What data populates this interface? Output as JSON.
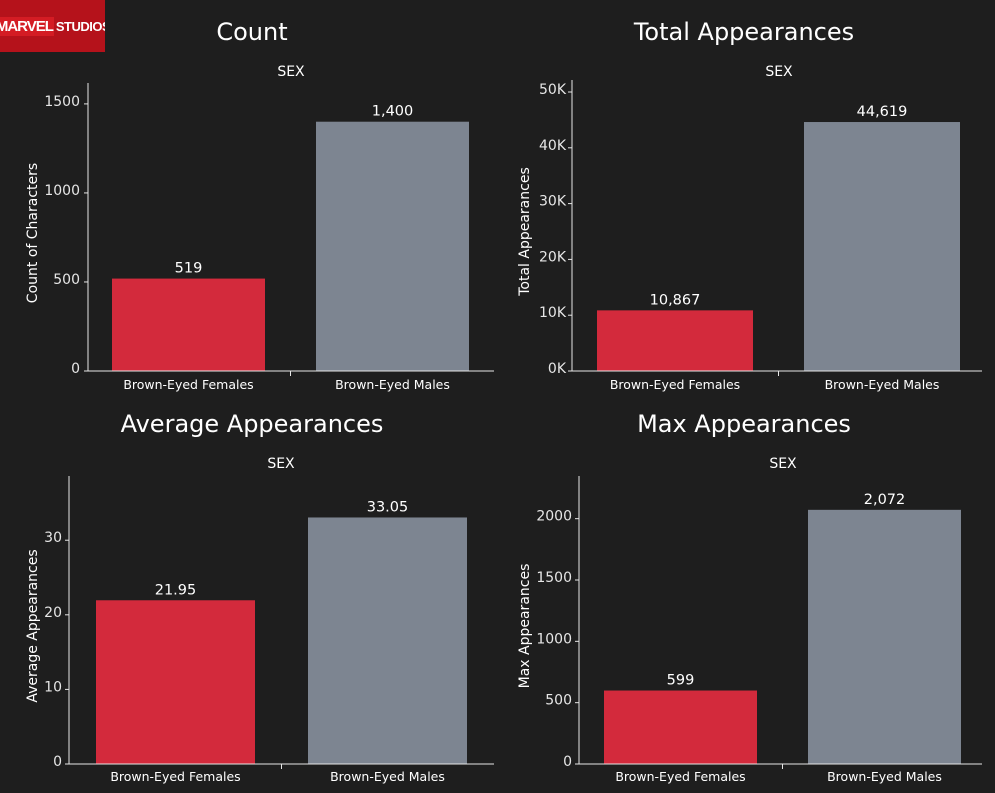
{
  "logo": {
    "text_a": "MARVEL",
    "text_b": "STUDIOS"
  },
  "colors": {
    "female": "#d32a3c",
    "male": "#7d8591",
    "background": "#1e1e1e"
  },
  "chart_data": [
    {
      "type": "bar",
      "title": "Count",
      "header": "SEX",
      "ylabel": "Count of Characters",
      "categories": [
        "Brown-Eyed Females",
        "Brown-Eyed Males"
      ],
      "values": [
        519,
        1400
      ],
      "value_labels": [
        "519",
        "1,400"
      ],
      "ylim": [
        0,
        1550
      ],
      "ticks": [
        0,
        500,
        1000,
        1500
      ],
      "tick_labels": [
        "0",
        "500",
        "1000",
        "1500"
      ]
    },
    {
      "type": "bar",
      "title": "Total Appearances",
      "header": "SEX",
      "ylabel": "Total Appearances",
      "categories": [
        "Brown-Eyed Females",
        "Brown-Eyed Males"
      ],
      "values": [
        10867,
        44619
      ],
      "value_labels": [
        "10,867",
        "44,619"
      ],
      "ylim": [
        0,
        50000
      ],
      "ticks": [
        0,
        10000,
        20000,
        30000,
        40000,
        50000
      ],
      "tick_labels": [
        "0K",
        "10K",
        "20K",
        "30K",
        "40K",
        "50K"
      ]
    },
    {
      "type": "bar",
      "title": "Average Appearances",
      "header": "SEX",
      "ylabel": "Average Appearances",
      "categories": [
        "Brown-Eyed Females",
        "Brown-Eyed Males"
      ],
      "values": [
        21.95,
        33.05
      ],
      "value_labels": [
        "21.95",
        "33.05"
      ],
      "ylim": [
        0,
        37
      ],
      "ticks": [
        0,
        10,
        20,
        30
      ],
      "tick_labels": [
        "0",
        "10",
        "20",
        "30"
      ]
    },
    {
      "type": "bar",
      "title": "Max Appearances",
      "header": "SEX",
      "ylabel": "Max Appearances",
      "categories": [
        "Brown-Eyed Females",
        "Brown-Eyed Males"
      ],
      "values": [
        599,
        2072
      ],
      "value_labels": [
        "599",
        "2,072"
      ],
      "ylim": [
        0,
        2250
      ],
      "ticks": [
        0,
        500,
        1000,
        1500,
        2000
      ],
      "tick_labels": [
        "0",
        "500",
        "1000",
        "1500",
        "2000"
      ]
    }
  ]
}
